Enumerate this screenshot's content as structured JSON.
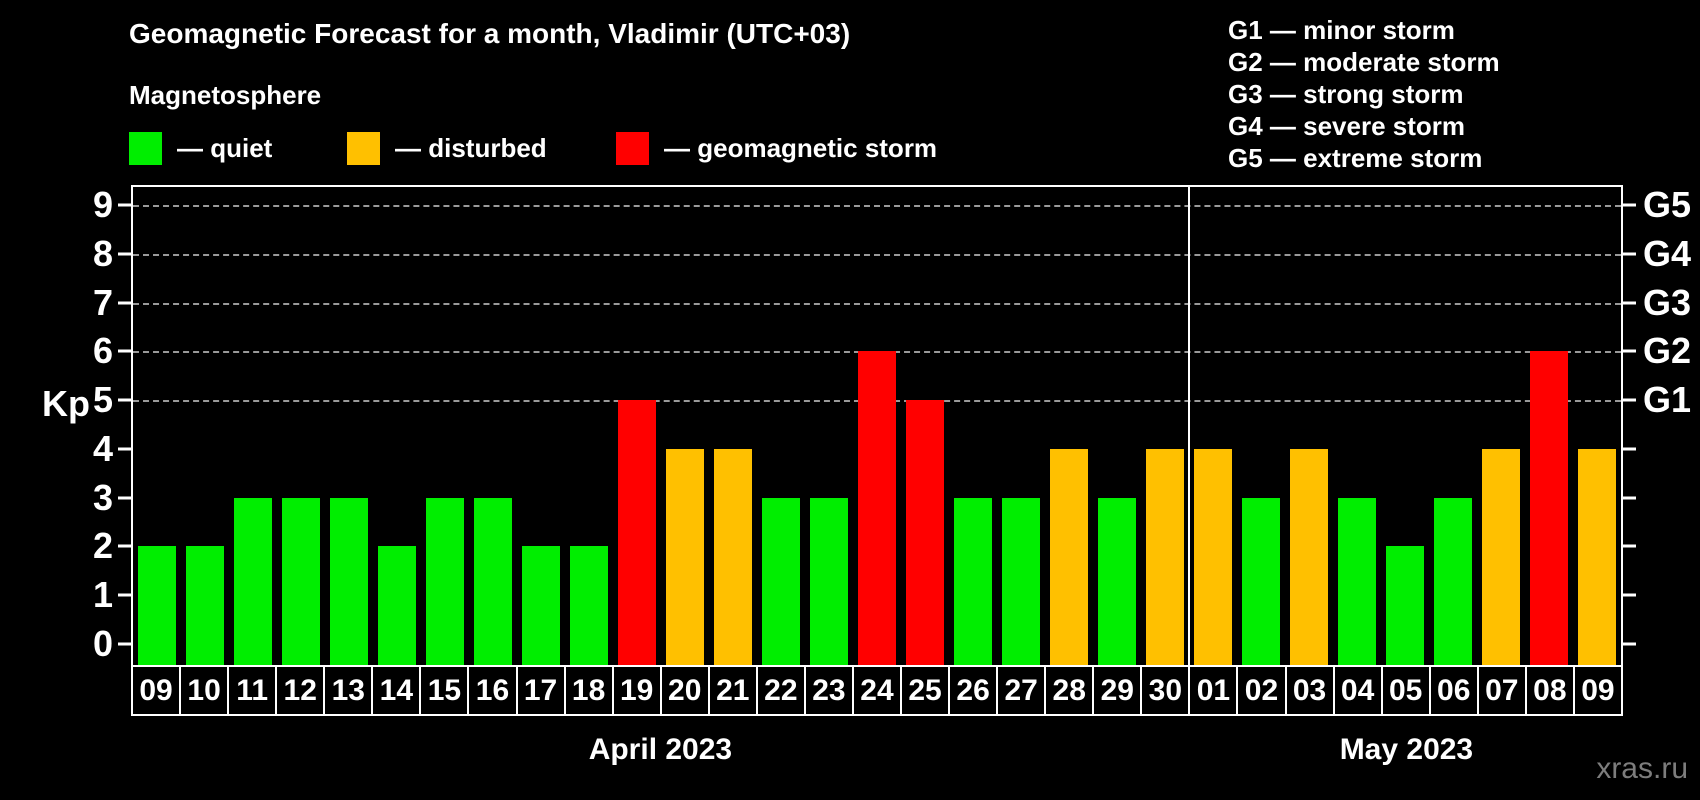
{
  "header": {
    "title": "Geomagnetic Forecast for a month, Vladimir (UTC+03)",
    "subtitle": "Magnetosphere"
  },
  "legend": {
    "items": [
      {
        "name": "quiet",
        "label": "— quiet",
        "color": "#00ee00"
      },
      {
        "name": "disturbed",
        "label": "— disturbed",
        "color": "#ffc000"
      },
      {
        "name": "storm",
        "label": "— geomagnetic storm",
        "color": "#ff0000"
      }
    ]
  },
  "storm_legend": {
    "items": [
      "G1 — minor storm",
      "G2 — moderate storm",
      "G3 — strong storm",
      "G4 — severe storm",
      "G5 — extreme storm"
    ]
  },
  "watermark": "xras.ru",
  "chart_data": {
    "type": "bar",
    "title": "Geomagnetic Forecast for a month, Vladimir (UTC+03)",
    "ylabel": "Kp",
    "ylim": [
      -0.43,
      9.37
    ],
    "yticks": [
      0,
      1,
      2,
      3,
      4,
      5,
      6,
      7,
      8,
      9
    ],
    "gridline_levels": [
      5,
      6,
      7,
      8,
      9
    ],
    "grid_color": "#9a9a9a",
    "right_axis_labels": [
      {
        "level": 5,
        "label": "G1"
      },
      {
        "level": 6,
        "label": "G2"
      },
      {
        "level": 7,
        "label": "G3"
      },
      {
        "level": 8,
        "label": "G4"
      },
      {
        "level": 9,
        "label": "G5"
      }
    ],
    "categories": [
      "09",
      "10",
      "11",
      "12",
      "13",
      "14",
      "15",
      "16",
      "17",
      "18",
      "19",
      "20",
      "21",
      "22",
      "23",
      "24",
      "25",
      "26",
      "27",
      "28",
      "29",
      "30",
      "01",
      "02",
      "03",
      "04",
      "05",
      "06",
      "07",
      "08",
      "09"
    ],
    "values": [
      2,
      2,
      3,
      3,
      3,
      2,
      3,
      3,
      2,
      2,
      5,
      4,
      4,
      3,
      3,
      6,
      5,
      3,
      3,
      4,
      3,
      4,
      4,
      3,
      4,
      3,
      2,
      3,
      4,
      6,
      4
    ],
    "statuses": [
      "quiet",
      "quiet",
      "quiet",
      "quiet",
      "quiet",
      "quiet",
      "quiet",
      "quiet",
      "quiet",
      "quiet",
      "storm",
      "disturbed",
      "disturbed",
      "quiet",
      "quiet",
      "storm",
      "storm",
      "quiet",
      "quiet",
      "disturbed",
      "quiet",
      "disturbed",
      "disturbed",
      "quiet",
      "disturbed",
      "quiet",
      "quiet",
      "quiet",
      "disturbed",
      "storm",
      "disturbed"
    ],
    "status_colors": {
      "quiet": "#00ee00",
      "disturbed": "#ffc000",
      "storm": "#ff0000"
    },
    "months": [
      {
        "label": "April 2023",
        "days": 22
      },
      {
        "label": "May 2023",
        "days": 9
      }
    ]
  }
}
